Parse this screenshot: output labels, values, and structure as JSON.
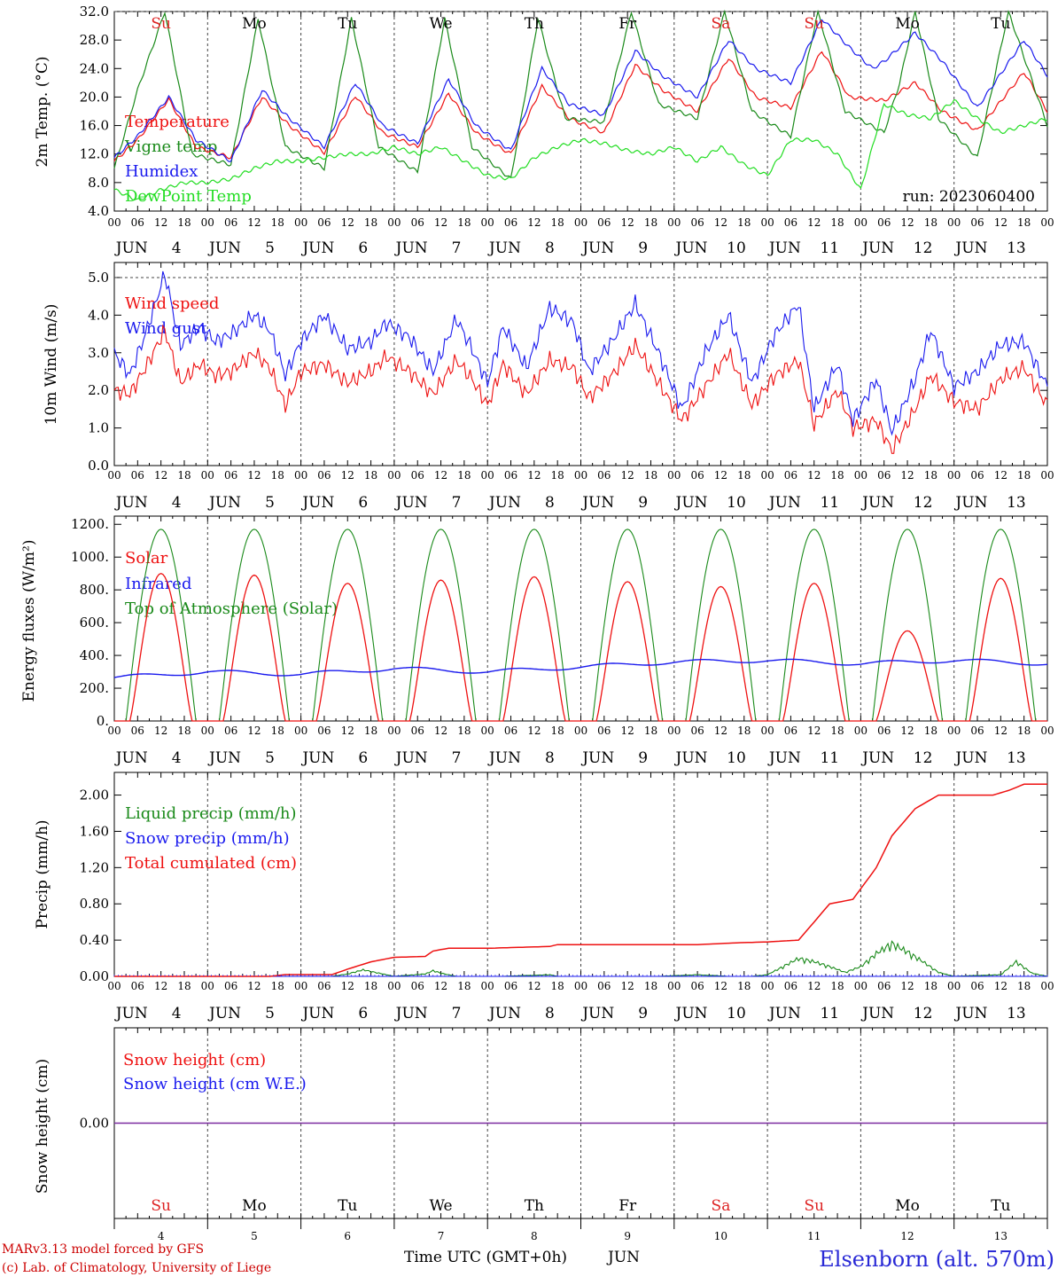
{
  "header": {
    "run_label": "run: 2023060400"
  },
  "footer": {
    "credit_line1": "MARv3.13 model forced by GFS",
    "credit_line2": "(c) Lab. of Climatology, University of Liege",
    "xlabel": "Time UTC (GMT+0h)",
    "month": "JUN",
    "station": "Elsenborn (alt. 570m)"
  },
  "days": {
    "dates": [
      "4",
      "5",
      "6",
      "7",
      "8",
      "9",
      "10",
      "11",
      "12",
      "13"
    ],
    "month": "JUN",
    "weekdays": [
      "Su",
      "Mo",
      "Tu",
      "We",
      "Th",
      "Fr",
      "Sa",
      "Su",
      "Mo",
      "Tu"
    ],
    "weekday_colors": [
      "#dd2222",
      "#000000",
      "#000000",
      "#000000",
      "#000000",
      "#000000",
      "#dd2222",
      "#dd2222",
      "#000000",
      "#000000"
    ],
    "hour_ticks": [
      "00",
      "06",
      "12",
      "18"
    ],
    "final_hour": "00"
  },
  "colors": {
    "red": "#ee1111",
    "green": "#1a8a1a",
    "blue": "#1a1aee",
    "lightgreen": "#22dd22",
    "purple": "#7a2aa0"
  },
  "chart_data": [
    {
      "type": "line",
      "ylabel": "2m Temp. (°C)",
      "ylim": [
        4,
        32
      ],
      "yticks": [
        "4.0",
        "8.0",
        "12.0",
        "16.0",
        "20.0",
        "24.0",
        "28.0",
        "32.0"
      ],
      "x_unit": "hours since 00 UTC Jun 4",
      "series": [
        {
          "name": "Temperature",
          "color": "red",
          "x": [
            0,
            6,
            14,
            21,
            30,
            38,
            45,
            54,
            62,
            69,
            78,
            86,
            93,
            102,
            110,
            117,
            126,
            134,
            141,
            150,
            158,
            165,
            174,
            182,
            189,
            198,
            206,
            213,
            222,
            234,
            240
          ],
          "y": [
            11,
            14,
            19.7,
            13,
            11.5,
            20,
            16,
            12.2,
            20.2,
            15,
            13,
            20.5,
            15,
            12,
            21.5,
            17,
            15,
            24.5,
            21,
            18,
            25.5,
            20,
            18.5,
            26.5,
            20,
            19.5,
            22,
            18,
            15.3,
            23.5,
            18
          ]
        },
        {
          "name": "Vigne temp",
          "color": "green",
          "x": [
            0,
            6,
            13,
            20,
            30,
            37,
            44,
            54,
            61,
            68,
            78,
            85,
            92,
            102,
            109,
            116,
            126,
            133,
            140,
            150,
            157,
            164,
            174,
            181,
            188,
            198,
            202,
            206,
            212,
            222,
            230,
            240
          ],
          "y": [
            10,
            21,
            32,
            12,
            10.5,
            31,
            13,
            10,
            31,
            13,
            9.5,
            31,
            13,
            8.5,
            31,
            17,
            16.5,
            32,
            19,
            17,
            32,
            18,
            14.5,
            32,
            18,
            15,
            22,
            32,
            17,
            11.5,
            32,
            16
          ]
        },
        {
          "name": "Humidex",
          "color": "blue",
          "x": [
            0,
            6,
            14,
            21,
            30,
            38,
            45,
            54,
            62,
            69,
            78,
            86,
            93,
            102,
            110,
            117,
            126,
            134,
            141,
            150,
            158,
            165,
            174,
            182,
            189,
            195,
            198,
            206,
            213,
            222,
            234,
            240
          ],
          "y": [
            11.5,
            14.5,
            20,
            14,
            11,
            21,
            17,
            13,
            22,
            16,
            13.5,
            22.5,
            16,
            12.5,
            24,
            19,
            17.5,
            26.5,
            23,
            20,
            28,
            24,
            22,
            31,
            27,
            24,
            25,
            29,
            25,
            18.5,
            28,
            23
          ]
        },
        {
          "name": "DewPoint Temp",
          "color": "lightgreen",
          "x": [
            0,
            6,
            12,
            18,
            24,
            30,
            36,
            42,
            48,
            54,
            60,
            66,
            72,
            78,
            84,
            90,
            96,
            102,
            108,
            114,
            120,
            126,
            132,
            138,
            144,
            150,
            156,
            162,
            168,
            174,
            180,
            186,
            192,
            198,
            204,
            210,
            216,
            222,
            228,
            234,
            240
          ],
          "y": [
            7,
            5.5,
            7,
            8,
            8,
            8.5,
            10,
            11,
            11,
            11.5,
            12,
            12,
            13,
            12,
            13,
            11,
            9,
            8.5,
            11.5,
            13,
            14,
            13.5,
            12.5,
            12,
            13,
            11,
            13,
            10.5,
            9,
            14,
            14,
            12,
            7,
            19,
            17.5,
            17,
            19.5,
            17,
            15,
            16,
            17
          ]
        }
      ]
    },
    {
      "type": "line",
      "ylabel": "10m Wind (m/s)",
      "ylim": [
        0,
        5.4
      ],
      "yticks": [
        "0.0",
        "1.0",
        "2.0",
        "3.0",
        "4.0",
        "5.0"
      ],
      "x_unit": "hours since 00 UTC Jun 4",
      "series": [
        {
          "name": "Wind speed",
          "color": "red",
          "x": [
            0,
            4,
            8,
            13,
            17,
            22,
            26,
            30,
            36,
            40,
            44,
            48,
            54,
            60,
            66,
            70,
            76,
            82,
            88,
            92,
            96,
            100,
            106,
            112,
            118,
            122,
            128,
            134,
            140,
            146,
            152,
            158,
            164,
            170,
            176,
            180,
            186,
            190,
            196,
            200,
            206,
            210,
            216,
            222,
            228,
            234,
            240
          ],
          "y": [
            2,
            1.9,
            2.6,
            3.6,
            2.2,
            2.7,
            2.4,
            2.5,
            3,
            2.6,
            1.6,
            2.5,
            2.7,
            2.2,
            2.5,
            2.9,
            2.5,
            1.9,
            2.8,
            2.3,
            1.6,
            2.7,
            1.9,
            2.8,
            2.6,
            1.8,
            2.4,
            3.2,
            2.2,
            1.2,
            2.1,
            3,
            1.6,
            2.4,
            2.8,
            1.1,
            2,
            1,
            1.2,
            0.4,
            1.5,
            2.4,
            1.7,
            1.5,
            2.3,
            2.6,
            1.6
          ]
        },
        {
          "name": "Wind gust",
          "color": "blue",
          "x": [
            0,
            4,
            8,
            13,
            17,
            22,
            26,
            30,
            36,
            40,
            44,
            48,
            54,
            60,
            66,
            70,
            76,
            82,
            88,
            92,
            96,
            100,
            106,
            112,
            118,
            122,
            128,
            134,
            140,
            146,
            152,
            158,
            164,
            170,
            176,
            180,
            186,
            190,
            196,
            200,
            206,
            210,
            216,
            222,
            228,
            234,
            240
          ],
          "y": [
            3,
            2.4,
            3.5,
            5.1,
            3.2,
            3.7,
            3.3,
            3.5,
            4,
            3.6,
            2.4,
            3.3,
            4,
            3.1,
            3.3,
            3.8,
            3.4,
            2.5,
            3.9,
            3.1,
            2.2,
            3.7,
            2.6,
            4.2,
            3.8,
            2.5,
            3.3,
            4.3,
            3,
            1.5,
            3,
            4,
            2.2,
            3.5,
            4.3,
            1.5,
            2.7,
            1.2,
            2.3,
            0.9,
            2.3,
            3.6,
            2.1,
            2.5,
            3.2,
            3.3,
            2.1
          ]
        }
      ]
    },
    {
      "type": "line",
      "ylabel": "Energy fluxes (W/m²)",
      "ylim": [
        0,
        1250
      ],
      "yticks": [
        "0.",
        "200.",
        "400.",
        "600.",
        "800.",
        "1000.",
        "1200."
      ],
      "x_unit": "hours since 00 UTC Jun 4",
      "solar_peaks": [
        900,
        890,
        840,
        860,
        880,
        850,
        820,
        840,
        550,
        870
      ],
      "toa_peak": 1170,
      "infrared": {
        "x": [
          0,
          24,
          48,
          72,
          96,
          120,
          144,
          168,
          192,
          216,
          240
        ],
        "y": [
          265,
          300,
          285,
          320,
          300,
          330,
          360,
          370,
          350,
          370,
          350
        ]
      },
      "series": [
        {
          "name": "Solar",
          "color": "red"
        },
        {
          "name": "Infrared",
          "color": "blue"
        },
        {
          "name": "Top of Atmosphere (Solar)",
          "color": "green"
        }
      ]
    },
    {
      "type": "line",
      "ylabel": "Precip (mm/h)",
      "ylim": [
        0,
        2.25
      ],
      "yticks": [
        "0.00",
        "0.40",
        "0.80",
        "1.20",
        "1.60",
        "2.00"
      ],
      "x_unit": "hours since 00 UTC Jun 4",
      "series": [
        {
          "name": "Liquid precip (mm/h)",
          "color": "green",
          "x": [
            0,
            56,
            60,
            64,
            68,
            72,
            80,
            82,
            84,
            88,
            100,
            112,
            114,
            120,
            140,
            150,
            158,
            164,
            168,
            172,
            176,
            180,
            184,
            188,
            192,
            196,
            200,
            204,
            208,
            212,
            216,
            228,
            232,
            236,
            240
          ],
          "y": [
            0,
            0,
            0.03,
            0.08,
            0.04,
            0,
            0.03,
            0.07,
            0.04,
            0,
            0,
            0.02,
            0,
            0,
            0,
            0.02,
            0,
            0,
            0.02,
            0.12,
            0.22,
            0.18,
            0.12,
            0.05,
            0.12,
            0.28,
            0.4,
            0.3,
            0.18,
            0.05,
            0,
            0.02,
            0.18,
            0.04,
            0
          ]
        },
        {
          "name": "Snow precip (mm/h)",
          "color": "blue",
          "x": [
            0,
            240
          ],
          "y": [
            0,
            0
          ]
        },
        {
          "name": "Total cumulated (cm)",
          "color": "red",
          "x": [
            0,
            40,
            44,
            56,
            60,
            66,
            72,
            80,
            82,
            86,
            96,
            112,
            114,
            150,
            160,
            168,
            176,
            184,
            190,
            196,
            200,
            206,
            212,
            216,
            226,
            230,
            234,
            240
          ],
          "y": [
            0,
            0,
            0.02,
            0.02,
            0.08,
            0.16,
            0.21,
            0.22,
            0.28,
            0.31,
            0.31,
            0.33,
            0.35,
            0.35,
            0.37,
            0.38,
            0.4,
            0.8,
            0.85,
            1.2,
            1.55,
            1.85,
            2.0,
            2.0,
            2.0,
            2.05,
            2.12,
            2.12
          ]
        }
      ]
    },
    {
      "type": "line",
      "ylabel": "Snow height (cm)",
      "ylim": [
        -1,
        1
      ],
      "yticks": [
        "0.00"
      ],
      "x_unit": "hours since 00 UTC Jun 4",
      "series": [
        {
          "name": "Snow height (cm)",
          "color": "red",
          "x": [
            0,
            240
          ],
          "y": [
            0,
            0
          ]
        },
        {
          "name": "Snow height (cm W.E.)",
          "color": "blue",
          "x": [
            0,
            240
          ],
          "y": [
            0,
            0
          ]
        }
      ]
    }
  ]
}
